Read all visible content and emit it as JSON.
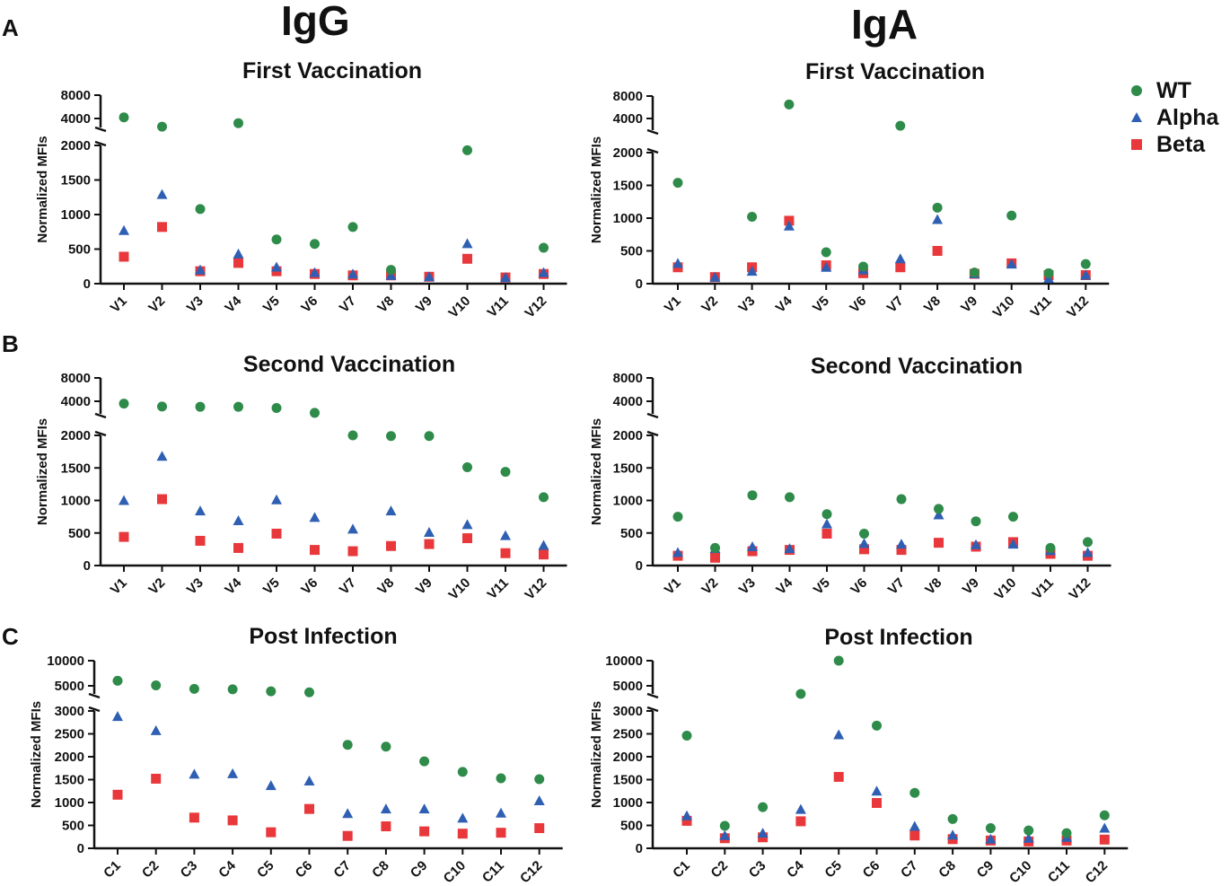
{
  "headers": {
    "igg": "IgG",
    "iga": "IgA"
  },
  "panel_letters": [
    "A",
    "B",
    "C"
  ],
  "legend": [
    {
      "name": "WT",
      "color": "#2E8B4A",
      "marker": "circle"
    },
    {
      "name": "Alpha",
      "color": "#2F5FB3",
      "marker": "triangle"
    },
    {
      "name": "Beta",
      "color": "#E8383B",
      "marker": "square"
    }
  ],
  "chart_data": [
    {
      "type": "scatter",
      "title": "First Vaccination",
      "ylabel": "Normalized MFIs",
      "categories": [
        "V1",
        "V2",
        "V3",
        "V4",
        "V5",
        "V6",
        "V7",
        "V8",
        "V9",
        "V10",
        "V11",
        "V12"
      ],
      "lower_ticks": [
        "0",
        "500",
        "1000",
        "1500",
        "2000"
      ],
      "upper_ticks": [
        "4000",
        "8000"
      ],
      "series": [
        {
          "name": "WT",
          "values": [
            4200,
            2600,
            1080,
            3200,
            640,
            575,
            820,
            200,
            null,
            1930,
            null,
            520
          ]
        },
        {
          "name": "Alpha",
          "values": [
            770,
            1290,
            200,
            430,
            240,
            160,
            140,
            120,
            100,
            580,
            90,
            160
          ]
        },
        {
          "name": "Beta",
          "values": [
            390,
            820,
            180,
            300,
            180,
            140,
            120,
            120,
            100,
            360,
            90,
            140
          ]
        }
      ]
    },
    {
      "type": "scatter",
      "title": "First Vaccination",
      "ylabel": "Normalized MFIs",
      "categories": [
        "V1",
        "V2",
        "V3",
        "V4",
        "V5",
        "V6",
        "V7",
        "V8",
        "V9",
        "V10",
        "V11",
        "V12"
      ],
      "lower_ticks": [
        "0",
        "500",
        "1000",
        "1500",
        "2000"
      ],
      "upper_ticks": [
        "4000",
        "8000"
      ],
      "series": [
        {
          "name": "WT",
          "values": [
            1540,
            null,
            1020,
            6500,
            480,
            260,
            2700,
            1160,
            170,
            1040,
            160,
            300
          ]
        },
        {
          "name": "Alpha",
          "values": [
            310,
            100,
            190,
            880,
            250,
            210,
            380,
            980,
            150,
            300,
            80,
            130
          ]
        },
        {
          "name": "Beta",
          "values": [
            250,
            100,
            250,
            960,
            280,
            160,
            250,
            500,
            150,
            310,
            130,
            130
          ]
        }
      ]
    },
    {
      "type": "scatter",
      "title": "Second Vaccination",
      "ylabel": "Normalized MFIs",
      "categories": [
        "V1",
        "V2",
        "V3",
        "V4",
        "V5",
        "V6",
        "V7",
        "V8",
        "V9",
        "V10",
        "V11",
        "V12"
      ],
      "lower_ticks": [
        "0",
        "500",
        "1000",
        "1500",
        "2000"
      ],
      "upper_ticks": [
        "4000",
        "8000"
      ],
      "series": [
        {
          "name": "WT",
          "values": [
            3600,
            3100,
            3050,
            3050,
            2850,
            2010,
            2000,
            1990,
            1990,
            1510,
            1440,
            1050
          ]
        },
        {
          "name": "Alpha",
          "values": [
            1000,
            1680,
            840,
            690,
            1010,
            740,
            560,
            840,
            510,
            630,
            460,
            310
          ]
        },
        {
          "name": "Beta",
          "values": [
            440,
            1020,
            380,
            270,
            490,
            240,
            220,
            300,
            330,
            420,
            190,
            170
          ]
        }
      ]
    },
    {
      "type": "scatter",
      "title": "Second Vaccination",
      "ylabel": "Normalized MFIs",
      "categories": [
        "V1",
        "V2",
        "V3",
        "V4",
        "V5",
        "V6",
        "V7",
        "V8",
        "V9",
        "V10",
        "V11",
        "V12"
      ],
      "lower_ticks": [
        "0",
        "500",
        "1000",
        "1500",
        "2000"
      ],
      "upper_ticks": [
        "4000",
        "8000"
      ],
      "series": [
        {
          "name": "WT",
          "values": [
            750,
            270,
            1080,
            1050,
            790,
            490,
            1020,
            870,
            680,
            750,
            270,
            360
          ]
        },
        {
          "name": "Alpha",
          "values": [
            200,
            260,
            290,
            260,
            640,
            340,
            330,
            780,
            320,
            330,
            230,
            200
          ]
        },
        {
          "name": "Beta",
          "values": [
            150,
            120,
            220,
            240,
            490,
            250,
            240,
            350,
            290,
            360,
            180,
            150
          ]
        }
      ]
    },
    {
      "type": "scatter",
      "title": "Post Infection",
      "ylabel": "Normalized MFIs",
      "categories": [
        "C1",
        "C2",
        "C3",
        "C4",
        "C5",
        "C6",
        "C7",
        "C8",
        "C9",
        "C10",
        "C11",
        "C12"
      ],
      "lower_ticks": [
        "0",
        "500",
        "1000",
        "1500",
        "2000",
        "2500",
        "3000"
      ],
      "upper_ticks": [
        "5000",
        "10000"
      ],
      "series": [
        {
          "name": "WT",
          "values": [
            6000,
            5100,
            4400,
            4300,
            3900,
            3700,
            2260,
            2220,
            1900,
            1670,
            1530,
            1510
          ]
        },
        {
          "name": "Alpha",
          "values": [
            2880,
            2570,
            1620,
            1630,
            1370,
            1470,
            760,
            860,
            860,
            660,
            770,
            1040
          ]
        },
        {
          "name": "Beta",
          "values": [
            1170,
            1520,
            670,
            610,
            350,
            860,
            270,
            480,
            370,
            320,
            340,
            440
          ]
        }
      ]
    },
    {
      "type": "scatter",
      "title": "Post Infection",
      "ylabel": "Normalized MFIs",
      "categories": [
        "C1",
        "C2",
        "C3",
        "C4",
        "C5",
        "C6",
        "C7",
        "C8",
        "C9",
        "C10",
        "C11",
        "C12"
      ],
      "lower_ticks": [
        "0",
        "500",
        "1000",
        "1500",
        "2000",
        "2500",
        "3000"
      ],
      "upper_ticks": [
        "5000",
        "10000"
      ],
      "series": [
        {
          "name": "WT",
          "values": [
            2460,
            490,
            900,
            3300,
            10000,
            2680,
            1210,
            640,
            440,
            390,
            330,
            720
          ]
        },
        {
          "name": "Alpha",
          "values": [
            710,
            280,
            330,
            850,
            2480,
            1250,
            480,
            290,
            200,
            220,
            240,
            440
          ]
        },
        {
          "name": "Beta",
          "values": [
            600,
            220,
            240,
            590,
            1560,
            990,
            280,
            200,
            170,
            150,
            170,
            190
          ]
        }
      ]
    }
  ]
}
